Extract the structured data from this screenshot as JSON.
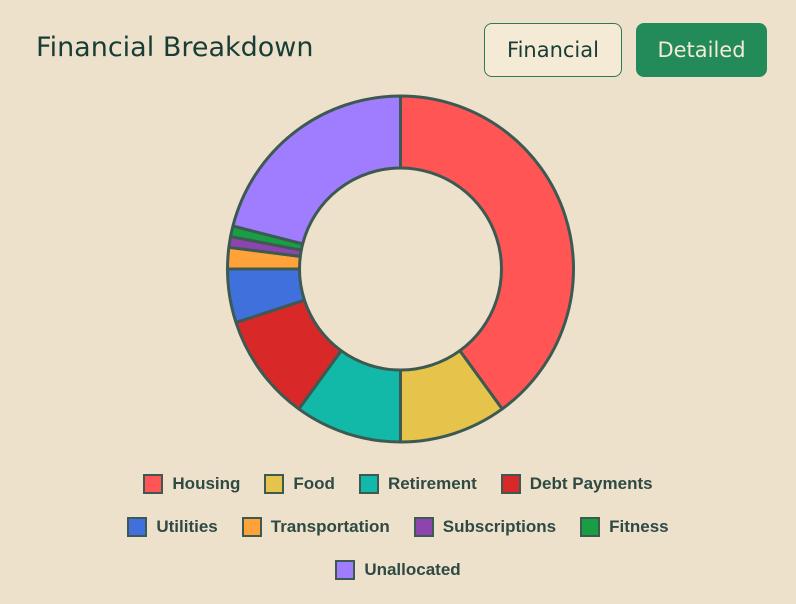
{
  "header": {
    "title": "Financial Breakdown"
  },
  "toggle": {
    "financial_label": "Financial",
    "detailed_label": "Detailed",
    "active": "Detailed"
  },
  "colors": {
    "background": "#ede1cc",
    "stroke": "#3c5a52",
    "active_button": "#238b5a"
  },
  "chart_data": {
    "type": "pie",
    "variant": "donut",
    "title": "",
    "legend_position": "bottom",
    "series": [
      {
        "name": "Housing",
        "value": 40,
        "color": "#ff5555"
      },
      {
        "name": "Food",
        "value": 10,
        "color": "#e6c34a"
      },
      {
        "name": "Retirement",
        "value": 10,
        "color": "#12b8a8"
      },
      {
        "name": "Debt Payments",
        "value": 10,
        "color": "#d92828"
      },
      {
        "name": "Utilities",
        "value": 5,
        "color": "#4070db"
      },
      {
        "name": "Transportation",
        "value": 2,
        "color": "#ffa23a"
      },
      {
        "name": "Subscriptions",
        "value": 1,
        "color": "#8e44ad"
      },
      {
        "name": "Fitness",
        "value": 1,
        "color": "#1a9e44"
      },
      {
        "name": "Unallocated",
        "value": 21,
        "color": "#a07cff"
      }
    ]
  }
}
